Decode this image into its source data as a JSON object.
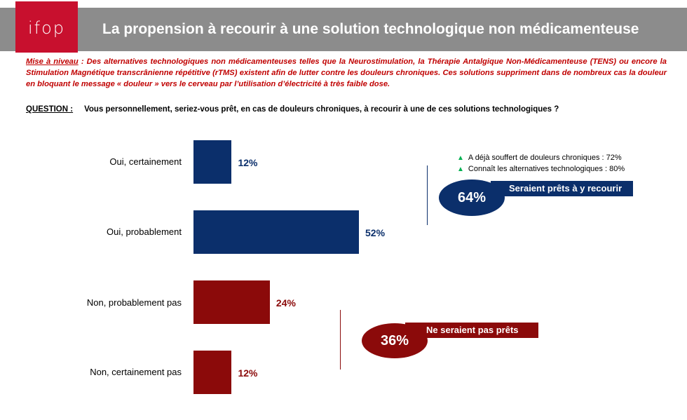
{
  "header": {
    "logo": "ifop",
    "title": "La propension à recourir à une solution technologique non médicamenteuse"
  },
  "intro": {
    "label": "Mise à niveau",
    "text": " : Des alternatives technologiques non médicamenteuses telles que la Neurostimulation, la Thérapie Antalgique Non-Médicamenteuse (TENS) ou encore la Stimulation Magnétique transcrânienne répétitive (rTMS) existent afin de lutter contre les douleurs chroniques. Ces solutions suppriment dans de nombreux cas la douleur en bloquant le message « douleur » vers le cerveau par l’utilisation d’électricité à très faible dose."
  },
  "question": {
    "label": "QUESTION :",
    "text": "Vous personnellement, seriez-vous prêt, en cas de douleurs chroniques, à recourir à une de ces solutions technologiques ?"
  },
  "chart_data": {
    "type": "bar",
    "orientation": "horizontal",
    "categories": [
      "Oui, certainement",
      "Oui, probablement",
      "Non, probablement pas",
      "Non, certainement pas"
    ],
    "values": [
      12,
      52,
      24,
      12
    ],
    "value_labels": [
      "12%",
      "52%",
      "24%",
      "12%"
    ],
    "colors": [
      "#0b2f6b",
      "#0b2f6b",
      "#8b0a0a",
      "#8b0a0a"
    ],
    "unit": "%",
    "xlim": [
      0,
      100
    ]
  },
  "summary": {
    "yes": {
      "value": "64%",
      "label": "Seraient prêts à y recourir",
      "color": "#0b2f6b"
    },
    "no": {
      "value": "36%",
      "label": "Ne seraient pas prêts",
      "color": "#8b0a0a"
    }
  },
  "notes": [
    {
      "icon": "up-triangle-icon",
      "text": "A déjà souffert de douleurs chroniques : 72%"
    },
    {
      "icon": "up-triangle-icon",
      "text": "Connaît les alternatives technologiques : 80%"
    }
  ]
}
